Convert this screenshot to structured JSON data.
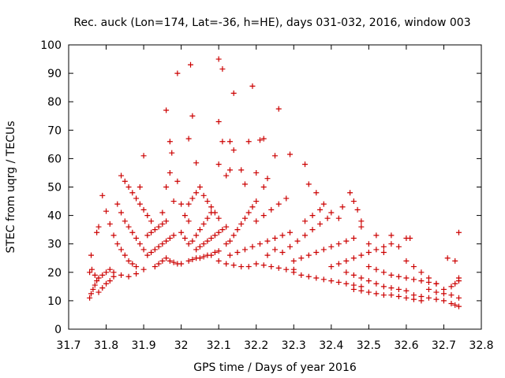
{
  "chart_data": {
    "type": "scatter",
    "title": "Rec. auck (Lon=174, Lat=-36, h=HE), days 031-032, 2016, window 003",
    "xlabel": "GPS time / Days of year 2016",
    "ylabel": "STEC from uqrg / TECUs",
    "xlim": [
      31.7,
      32.8
    ],
    "ylim": [
      0,
      100
    ],
    "xticks": [
      31.7,
      31.8,
      31.9,
      32.0,
      32.1,
      32.2,
      32.3,
      32.4,
      32.5,
      32.6,
      32.7,
      32.8
    ],
    "xtick_labels": [
      "31.7",
      "31.8",
      "31.9",
      "32",
      "32.1",
      "32.2",
      "32.3",
      "32.4",
      "32.5",
      "32.6",
      "32.7",
      "32.8"
    ],
    "yticks": [
      0,
      10,
      20,
      30,
      40,
      50,
      60,
      70,
      80,
      90,
      100
    ],
    "ytick_labels": [
      "0",
      "10",
      "20",
      "30",
      "40",
      "50",
      "60",
      "70",
      "80",
      "90",
      "100"
    ],
    "grid": false,
    "marker": "+",
    "series_color": "#cc0000",
    "points": [
      [
        31.756,
        11
      ],
      [
        31.76,
        12.5
      ],
      [
        31.765,
        14
      ],
      [
        31.77,
        15.5
      ],
      [
        31.775,
        17
      ],
      [
        31.78,
        13
      ],
      [
        31.79,
        14.5
      ],
      [
        31.8,
        16
      ],
      [
        31.81,
        17
      ],
      [
        31.82,
        18.5
      ],
      [
        31.756,
        20
      ],
      [
        31.762,
        21
      ],
      [
        31.77,
        19
      ],
      [
        31.78,
        18
      ],
      [
        31.79,
        19
      ],
      [
        31.8,
        20
      ],
      [
        31.81,
        21
      ],
      [
        31.82,
        20
      ],
      [
        31.84,
        19
      ],
      [
        31.86,
        18.5
      ],
      [
        31.88,
        19.5
      ],
      [
        31.9,
        21
      ],
      [
        31.76,
        26
      ],
      [
        31.775,
        34
      ],
      [
        31.78,
        36
      ],
      [
        31.79,
        47
      ],
      [
        31.8,
        41.5
      ],
      [
        31.81,
        37
      ],
      [
        31.82,
        33
      ],
      [
        31.83,
        30
      ],
      [
        31.84,
        28
      ],
      [
        31.85,
        26
      ],
      [
        31.86,
        24
      ],
      [
        31.87,
        23
      ],
      [
        31.88,
        22
      ],
      [
        31.83,
        44
      ],
      [
        31.84,
        41
      ],
      [
        31.85,
        38
      ],
      [
        31.86,
        36
      ],
      [
        31.87,
        34
      ],
      [
        31.88,
        32
      ],
      [
        31.89,
        30
      ],
      [
        31.9,
        28
      ],
      [
        31.84,
        54
      ],
      [
        31.85,
        52
      ],
      [
        31.86,
        50
      ],
      [
        31.87,
        48
      ],
      [
        31.88,
        46
      ],
      [
        31.89,
        44
      ],
      [
        31.9,
        42
      ],
      [
        31.91,
        40
      ],
      [
        31.92,
        38
      ],
      [
        31.9,
        61
      ],
      [
        31.89,
        50
      ],
      [
        31.91,
        33
      ],
      [
        31.92,
        34
      ],
      [
        31.93,
        35
      ],
      [
        31.94,
        36
      ],
      [
        31.95,
        37
      ],
      [
        31.96,
        38
      ],
      [
        31.91,
        26
      ],
      [
        31.92,
        27
      ],
      [
        31.93,
        28
      ],
      [
        31.94,
        29
      ],
      [
        31.95,
        30
      ],
      [
        31.96,
        31
      ],
      [
        31.97,
        32
      ],
      [
        31.98,
        33
      ],
      [
        31.93,
        22
      ],
      [
        31.94,
        23
      ],
      [
        31.95,
        24
      ],
      [
        31.96,
        25
      ],
      [
        31.97,
        24
      ],
      [
        31.98,
        23.5
      ],
      [
        31.99,
        23
      ],
      [
        32.0,
        23
      ],
      [
        31.95,
        41
      ],
      [
        31.96,
        50
      ],
      [
        31.97,
        55
      ],
      [
        31.98,
        45
      ],
      [
        31.99,
        52
      ],
      [
        32.0,
        44
      ],
      [
        32.01,
        40
      ],
      [
        32.02,
        38
      ],
      [
        31.96,
        77
      ],
      [
        31.97,
        66
      ],
      [
        31.975,
        62
      ],
      [
        31.99,
        90
      ],
      [
        32.02,
        67
      ],
      [
        32.025,
        93
      ],
      [
        32.03,
        75
      ],
      [
        32.04,
        58.5
      ],
      [
        32.1,
        95
      ],
      [
        32.11,
        91.5
      ],
      [
        32.14,
        83
      ],
      [
        32.19,
        85.5
      ],
      [
        32.26,
        77.5
      ],
      [
        32.1,
        73
      ],
      [
        32.11,
        66
      ],
      [
        32.13,
        66
      ],
      [
        32.18,
        66
      ],
      [
        32.21,
        66.5
      ],
      [
        32.22,
        67
      ],
      [
        32.0,
        34
      ],
      [
        32.01,
        32
      ],
      [
        32.02,
        30
      ],
      [
        32.03,
        31
      ],
      [
        32.04,
        33
      ],
      [
        32.05,
        35
      ],
      [
        32.06,
        37
      ],
      [
        32.07,
        39
      ],
      [
        32.08,
        41
      ],
      [
        32.02,
        24
      ],
      [
        32.03,
        24.5
      ],
      [
        32.04,
        25
      ],
      [
        32.05,
        25
      ],
      [
        32.06,
        25.5
      ],
      [
        32.07,
        26
      ],
      [
        32.08,
        26
      ],
      [
        32.09,
        27
      ],
      [
        32.1,
        27.5
      ],
      [
        32.02,
        44
      ],
      [
        32.03,
        46
      ],
      [
        32.04,
        48
      ],
      [
        32.05,
        50
      ],
      [
        32.06,
        47
      ],
      [
        32.07,
        45
      ],
      [
        32.08,
        43
      ],
      [
        32.09,
        41
      ],
      [
        32.1,
        39
      ],
      [
        32.04,
        28
      ],
      [
        32.05,
        29
      ],
      [
        32.06,
        30
      ],
      [
        32.07,
        31
      ],
      [
        32.08,
        32
      ],
      [
        32.09,
        33
      ],
      [
        32.1,
        34
      ],
      [
        32.11,
        35
      ],
      [
        32.12,
        36
      ],
      [
        32.1,
        58
      ],
      [
        32.12,
        54
      ],
      [
        32.13,
        56
      ],
      [
        32.14,
        63
      ],
      [
        32.16,
        56
      ],
      [
        32.17,
        51
      ],
      [
        32.2,
        55
      ],
      [
        32.22,
        50
      ],
      [
        32.23,
        53
      ],
      [
        32.1,
        24
      ],
      [
        32.12,
        23
      ],
      [
        32.14,
        22.5
      ],
      [
        32.16,
        22
      ],
      [
        32.18,
        22
      ],
      [
        32.2,
        23
      ],
      [
        32.22,
        22.5
      ],
      [
        32.24,
        22
      ],
      [
        32.26,
        21.5
      ],
      [
        32.28,
        21
      ],
      [
        32.3,
        21
      ],
      [
        32.12,
        30
      ],
      [
        32.13,
        31
      ],
      [
        32.14,
        33
      ],
      [
        32.15,
        35
      ],
      [
        32.16,
        37
      ],
      [
        32.17,
        39
      ],
      [
        32.18,
        41
      ],
      [
        32.19,
        43
      ],
      [
        32.2,
        45
      ],
      [
        32.13,
        26
      ],
      [
        32.15,
        27
      ],
      [
        32.17,
        28
      ],
      [
        32.19,
        29
      ],
      [
        32.21,
        30
      ],
      [
        32.23,
        31
      ],
      [
        32.25,
        32
      ],
      [
        32.27,
        33
      ],
      [
        32.29,
        34
      ],
      [
        32.2,
        38
      ],
      [
        32.22,
        40
      ],
      [
        32.24,
        42
      ],
      [
        32.26,
        44
      ],
      [
        32.28,
        46
      ],
      [
        32.25,
        61
      ],
      [
        32.29,
        61.5
      ],
      [
        32.33,
        58
      ],
      [
        32.34,
        51
      ],
      [
        32.36,
        48
      ],
      [
        32.23,
        26
      ],
      [
        32.25,
        28
      ],
      [
        32.27,
        27
      ],
      [
        32.29,
        29
      ],
      [
        32.31,
        31
      ],
      [
        32.33,
        33
      ],
      [
        32.35,
        35
      ],
      [
        32.37,
        37
      ],
      [
        32.39,
        39
      ],
      [
        32.3,
        20
      ],
      [
        32.32,
        19
      ],
      [
        32.34,
        18.5
      ],
      [
        32.36,
        18
      ],
      [
        32.38,
        17.5
      ],
      [
        32.4,
        17
      ],
      [
        32.42,
        16.5
      ],
      [
        32.44,
        16
      ],
      [
        32.46,
        15.5
      ],
      [
        32.48,
        15
      ],
      [
        32.3,
        24
      ],
      [
        32.32,
        25
      ],
      [
        32.34,
        26
      ],
      [
        32.36,
        27
      ],
      [
        32.38,
        28
      ],
      [
        32.4,
        29
      ],
      [
        32.42,
        30
      ],
      [
        32.44,
        31
      ],
      [
        32.46,
        32
      ],
      [
        32.33,
        38
      ],
      [
        32.35,
        40
      ],
      [
        32.37,
        42
      ],
      [
        32.38,
        44
      ],
      [
        32.4,
        41
      ],
      [
        32.42,
        39
      ],
      [
        32.43,
        43
      ],
      [
        32.45,
        48
      ],
      [
        32.46,
        45
      ],
      [
        32.47,
        42
      ],
      [
        32.48,
        38
      ],
      [
        32.4,
        22
      ],
      [
        32.42,
        23
      ],
      [
        32.44,
        24
      ],
      [
        32.46,
        25
      ],
      [
        32.48,
        26
      ],
      [
        32.5,
        27
      ],
      [
        32.52,
        28
      ],
      [
        32.54,
        29
      ],
      [
        32.56,
        30
      ],
      [
        32.44,
        20
      ],
      [
        32.46,
        19
      ],
      [
        32.48,
        18
      ],
      [
        32.5,
        17
      ],
      [
        32.52,
        16
      ],
      [
        32.54,
        15
      ],
      [
        32.56,
        14.5
      ],
      [
        32.58,
        14
      ],
      [
        32.6,
        13.5
      ],
      [
        32.46,
        14
      ],
      [
        32.48,
        13.5
      ],
      [
        32.5,
        13
      ],
      [
        32.52,
        12.5
      ],
      [
        32.54,
        12
      ],
      [
        32.56,
        12
      ],
      [
        32.58,
        11.5
      ],
      [
        32.6,
        11
      ],
      [
        32.62,
        10.5
      ],
      [
        32.64,
        10
      ],
      [
        32.48,
        36
      ],
      [
        32.5,
        30
      ],
      [
        32.52,
        33
      ],
      [
        32.54,
        27
      ],
      [
        32.56,
        33
      ],
      [
        32.58,
        29
      ],
      [
        32.6,
        32
      ],
      [
        32.61,
        32
      ],
      [
        32.5,
        22
      ],
      [
        32.52,
        21
      ],
      [
        32.54,
        20
      ],
      [
        32.56,
        19
      ],
      [
        32.58,
        18.5
      ],
      [
        32.6,
        18
      ],
      [
        32.62,
        17.5
      ],
      [
        32.64,
        17
      ],
      [
        32.66,
        16.5
      ],
      [
        32.68,
        16
      ],
      [
        32.6,
        24
      ],
      [
        32.62,
        22
      ],
      [
        32.64,
        20
      ],
      [
        32.66,
        18
      ],
      [
        32.68,
        16
      ],
      [
        32.7,
        14
      ],
      [
        32.72,
        12
      ],
      [
        32.74,
        11
      ],
      [
        32.62,
        12
      ],
      [
        32.64,
        11.5
      ],
      [
        32.66,
        11
      ],
      [
        32.68,
        10.5
      ],
      [
        32.7,
        10
      ],
      [
        32.72,
        9
      ],
      [
        32.73,
        8.5
      ],
      [
        32.74,
        8
      ],
      [
        32.66,
        14
      ],
      [
        32.68,
        13
      ],
      [
        32.7,
        12.5
      ],
      [
        32.72,
        15
      ],
      [
        32.73,
        16
      ],
      [
        32.74,
        17
      ],
      [
        32.71,
        25
      ],
      [
        32.73,
        24
      ],
      [
        32.74,
        18
      ],
      [
        32.74,
        34
      ]
    ]
  }
}
